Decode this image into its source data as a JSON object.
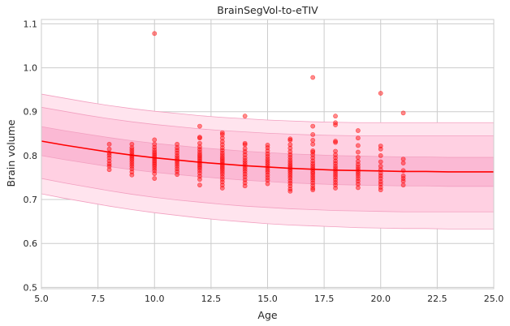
{
  "chart_data": {
    "type": "scatter",
    "title": "BrainSegVol-to-eTIV",
    "xlabel": "Age",
    "ylabel": "Brain volume",
    "xlim": [
      5.0,
      25.0
    ],
    "ylim": [
      0.497,
      1.11
    ],
    "grid": true,
    "x_ticks": [
      "5.0",
      "7.5",
      "10.0",
      "12.5",
      "15.0",
      "17.5",
      "20.0",
      "22.5",
      "25.0"
    ],
    "y_ticks": [
      "0.5",
      "0.6",
      "0.7",
      "0.8",
      "0.9",
      "1.0",
      "1.1"
    ],
    "colors": {
      "points": "#ff0000",
      "trend": "#ff0000",
      "band_outer": "#ffe4ee",
      "band_middle": "#ffd0e2",
      "band_inner": "#fbb9d4",
      "band_edge": "#f2a0c0",
      "grid": "#cccccc"
    },
    "trend_line": {
      "x": [
        5,
        6,
        7,
        8,
        9,
        10,
        11,
        12,
        13,
        14,
        15,
        16,
        17,
        18,
        19,
        20,
        21,
        22,
        23,
        24,
        25
      ],
      "y": [
        0.833,
        0.824,
        0.816,
        0.808,
        0.801,
        0.795,
        0.79,
        0.785,
        0.781,
        0.777,
        0.774,
        0.771,
        0.769,
        0.767,
        0.766,
        0.765,
        0.764,
        0.764,
        0.763,
        0.763,
        0.763
      ]
    },
    "bands": [
      {
        "x": [
          5,
          6,
          7,
          8,
          9,
          10,
          11,
          12,
          13,
          14,
          15,
          16,
          17,
          18,
          19,
          20,
          21,
          22,
          23,
          24,
          25
        ],
        "lower": [
          0.713,
          0.703,
          0.694,
          0.685,
          0.677,
          0.67,
          0.664,
          0.658,
          0.653,
          0.649,
          0.645,
          0.642,
          0.64,
          0.638,
          0.636,
          0.635,
          0.634,
          0.634,
          0.633,
          0.633,
          0.633
        ],
        "upper": [
          0.94,
          0.931,
          0.922,
          0.914,
          0.907,
          0.901,
          0.896,
          0.891,
          0.887,
          0.884,
          0.881,
          0.879,
          0.877,
          0.876,
          0.875,
          0.875,
          0.875,
          0.875,
          0.875,
          0.875,
          0.875
        ]
      },
      {
        "x": [
          5,
          6,
          7,
          8,
          9,
          10,
          11,
          12,
          13,
          14,
          15,
          16,
          17,
          18,
          19,
          20,
          21,
          22,
          23,
          24,
          25
        ],
        "lower": [
          0.748,
          0.738,
          0.729,
          0.72,
          0.712,
          0.705,
          0.699,
          0.694,
          0.689,
          0.685,
          0.682,
          0.679,
          0.677,
          0.675,
          0.674,
          0.673,
          0.672,
          0.672,
          0.672,
          0.672,
          0.672
        ],
        "upper": [
          0.91,
          0.901,
          0.892,
          0.884,
          0.877,
          0.871,
          0.866,
          0.861,
          0.857,
          0.854,
          0.851,
          0.849,
          0.847,
          0.846,
          0.845,
          0.845,
          0.845,
          0.845,
          0.845,
          0.845,
          0.845
        ]
      },
      {
        "x": [
          5,
          6,
          7,
          8,
          9,
          10,
          11,
          12,
          13,
          14,
          15,
          16,
          17,
          18,
          19,
          20,
          21,
          22,
          23,
          24,
          25
        ],
        "lower": [
          0.8,
          0.791,
          0.783,
          0.775,
          0.768,
          0.762,
          0.757,
          0.752,
          0.748,
          0.744,
          0.741,
          0.738,
          0.736,
          0.734,
          0.733,
          0.732,
          0.731,
          0.731,
          0.73,
          0.73,
          0.73
        ],
        "upper": [
          0.866,
          0.857,
          0.849,
          0.841,
          0.834,
          0.828,
          0.823,
          0.818,
          0.814,
          0.81,
          0.807,
          0.804,
          0.802,
          0.8,
          0.799,
          0.798,
          0.797,
          0.797,
          0.796,
          0.796,
          0.796
        ]
      }
    ],
    "points": [
      [
        8,
        0.768
      ],
      [
        8,
        0.776
      ],
      [
        8,
        0.781
      ],
      [
        8,
        0.788
      ],
      [
        8,
        0.795
      ],
      [
        8,
        0.801
      ],
      [
        8,
        0.806
      ],
      [
        8,
        0.815
      ],
      [
        8,
        0.826
      ],
      [
        9,
        0.756
      ],
      [
        9,
        0.763
      ],
      [
        9,
        0.77
      ],
      [
        9,
        0.776
      ],
      [
        9,
        0.781
      ],
      [
        9,
        0.786
      ],
      [
        9,
        0.791
      ],
      [
        9,
        0.795
      ],
      [
        9,
        0.799
      ],
      [
        9,
        0.803
      ],
      [
        9,
        0.808
      ],
      [
        9,
        0.813
      ],
      [
        9,
        0.818
      ],
      [
        9,
        0.826
      ],
      [
        10,
        0.748
      ],
      [
        10,
        0.759
      ],
      [
        10,
        0.766
      ],
      [
        10,
        0.771
      ],
      [
        10,
        0.776
      ],
      [
        10,
        0.78
      ],
      [
        10,
        0.784
      ],
      [
        10,
        0.788
      ],
      [
        10,
        0.792
      ],
      [
        10,
        0.796
      ],
      [
        10,
        0.8
      ],
      [
        10,
        0.804
      ],
      [
        10,
        0.808
      ],
      [
        10,
        0.813
      ],
      [
        10,
        0.819
      ],
      [
        10,
        0.826
      ],
      [
        10,
        0.836
      ],
      [
        10,
        1.078
      ],
      [
        11,
        0.757
      ],
      [
        11,
        0.764
      ],
      [
        11,
        0.77
      ],
      [
        11,
        0.776
      ],
      [
        11,
        0.781
      ],
      [
        11,
        0.786
      ],
      [
        11,
        0.79
      ],
      [
        11,
        0.795
      ],
      [
        11,
        0.8
      ],
      [
        11,
        0.806
      ],
      [
        11,
        0.812
      ],
      [
        11,
        0.818
      ],
      [
        11,
        0.826
      ],
      [
        12,
        0.733
      ],
      [
        12,
        0.746
      ],
      [
        12,
        0.753
      ],
      [
        12,
        0.76
      ],
      [
        12,
        0.766
      ],
      [
        12,
        0.771
      ],
      [
        12,
        0.775
      ],
      [
        12,
        0.779
      ],
      [
        12,
        0.783
      ],
      [
        12,
        0.787
      ],
      [
        12,
        0.791
      ],
      [
        12,
        0.795
      ],
      [
        12,
        0.799
      ],
      [
        12,
        0.803
      ],
      [
        12,
        0.808
      ],
      [
        12,
        0.814
      ],
      [
        12,
        0.82
      ],
      [
        12,
        0.828
      ],
      [
        12,
        0.84
      ],
      [
        12,
        0.842
      ],
      [
        12,
        0.867
      ],
      [
        13,
        0.726
      ],
      [
        13,
        0.733
      ],
      [
        13,
        0.74
      ],
      [
        13,
        0.746
      ],
      [
        13,
        0.752
      ],
      [
        13,
        0.758
      ],
      [
        13,
        0.763
      ],
      [
        13,
        0.768
      ],
      [
        13,
        0.772
      ],
      [
        13,
        0.776
      ],
      [
        13,
        0.78
      ],
      [
        13,
        0.784
      ],
      [
        13,
        0.788
      ],
      [
        13,
        0.792
      ],
      [
        13,
        0.796
      ],
      [
        13,
        0.801
      ],
      [
        13,
        0.806
      ],
      [
        13,
        0.812
      ],
      [
        13,
        0.818
      ],
      [
        13,
        0.825
      ],
      [
        13,
        0.832
      ],
      [
        13,
        0.84
      ],
      [
        13,
        0.848
      ],
      [
        13,
        0.852
      ],
      [
        14,
        0.731
      ],
      [
        14,
        0.738
      ],
      [
        14,
        0.745
      ],
      [
        14,
        0.752
      ],
      [
        14,
        0.758
      ],
      [
        14,
        0.764
      ],
      [
        14,
        0.769
      ],
      [
        14,
        0.774
      ],
      [
        14,
        0.779
      ],
      [
        14,
        0.784
      ],
      [
        14,
        0.789
      ],
      [
        14,
        0.795
      ],
      [
        14,
        0.802
      ],
      [
        14,
        0.809
      ],
      [
        14,
        0.816
      ],
      [
        14,
        0.825
      ],
      [
        14,
        0.828
      ],
      [
        14,
        0.89
      ],
      [
        15,
        0.736
      ],
      [
        15,
        0.744
      ],
      [
        15,
        0.75
      ],
      [
        15,
        0.756
      ],
      [
        15,
        0.762
      ],
      [
        15,
        0.767
      ],
      [
        15,
        0.772
      ],
      [
        15,
        0.777
      ],
      [
        15,
        0.782
      ],
      [
        15,
        0.787
      ],
      [
        15,
        0.792
      ],
      [
        15,
        0.798
      ],
      [
        15,
        0.804
      ],
      [
        15,
        0.811
      ],
      [
        15,
        0.818
      ],
      [
        15,
        0.824
      ],
      [
        16,
        0.719
      ],
      [
        16,
        0.724
      ],
      [
        16,
        0.731
      ],
      [
        16,
        0.737
      ],
      [
        16,
        0.743
      ],
      [
        16,
        0.749
      ],
      [
        16,
        0.754
      ],
      [
        16,
        0.759
      ],
      [
        16,
        0.764
      ],
      [
        16,
        0.768
      ],
      [
        16,
        0.772
      ],
      [
        16,
        0.776
      ],
      [
        16,
        0.78
      ],
      [
        16,
        0.785
      ],
      [
        16,
        0.79
      ],
      [
        16,
        0.796
      ],
      [
        16,
        0.802
      ],
      [
        16,
        0.809
      ],
      [
        16,
        0.817
      ],
      [
        16,
        0.825
      ],
      [
        16,
        0.835
      ],
      [
        16,
        0.838
      ],
      [
        17,
        0.722
      ],
      [
        17,
        0.726
      ],
      [
        17,
        0.732
      ],
      [
        17,
        0.738
      ],
      [
        17,
        0.744
      ],
      [
        17,
        0.749
      ],
      [
        17,
        0.754
      ],
      [
        17,
        0.759
      ],
      [
        17,
        0.763
      ],
      [
        17,
        0.768
      ],
      [
        17,
        0.772
      ],
      [
        17,
        0.777
      ],
      [
        17,
        0.782
      ],
      [
        17,
        0.788
      ],
      [
        17,
        0.795
      ],
      [
        17,
        0.802
      ],
      [
        17,
        0.808
      ],
      [
        17,
        0.811
      ],
      [
        17,
        0.826
      ],
      [
        17,
        0.835
      ],
      [
        17,
        0.848
      ],
      [
        17,
        0.867
      ],
      [
        17,
        0.978
      ],
      [
        18,
        0.726
      ],
      [
        18,
        0.733
      ],
      [
        18,
        0.739
      ],
      [
        18,
        0.745
      ],
      [
        18,
        0.751
      ],
      [
        18,
        0.756
      ],
      [
        18,
        0.761
      ],
      [
        18,
        0.766
      ],
      [
        18,
        0.771
      ],
      [
        18,
        0.776
      ],
      [
        18,
        0.782
      ],
      [
        18,
        0.788
      ],
      [
        18,
        0.795
      ],
      [
        18,
        0.802
      ],
      [
        18,
        0.81
      ],
      [
        18,
        0.83
      ],
      [
        18,
        0.833
      ],
      [
        18,
        0.87
      ],
      [
        18,
        0.875
      ],
      [
        18,
        0.89
      ],
      [
        19,
        0.727
      ],
      [
        19,
        0.735
      ],
      [
        19,
        0.742
      ],
      [
        19,
        0.748
      ],
      [
        19,
        0.754
      ],
      [
        19,
        0.759
      ],
      [
        19,
        0.764
      ],
      [
        19,
        0.769
      ],
      [
        19,
        0.774
      ],
      [
        19,
        0.78
      ],
      [
        19,
        0.787
      ],
      [
        19,
        0.796
      ],
      [
        19,
        0.808
      ],
      [
        19,
        0.823
      ],
      [
        19,
        0.84
      ],
      [
        19,
        0.857
      ],
      [
        20,
        0.722
      ],
      [
        20,
        0.728
      ],
      [
        20,
        0.735
      ],
      [
        20,
        0.741
      ],
      [
        20,
        0.748
      ],
      [
        20,
        0.754
      ],
      [
        20,
        0.76
      ],
      [
        20,
        0.768
      ],
      [
        20,
        0.776
      ],
      [
        20,
        0.786
      ],
      [
        20,
        0.8
      ],
      [
        20,
        0.815
      ],
      [
        20,
        0.822
      ],
      [
        20,
        0.942
      ],
      [
        21,
        0.733
      ],
      [
        21,
        0.742
      ],
      [
        21,
        0.748
      ],
      [
        21,
        0.754
      ],
      [
        21,
        0.766
      ],
      [
        21,
        0.783
      ],
      [
        21,
        0.792
      ],
      [
        21,
        0.897
      ]
    ]
  }
}
